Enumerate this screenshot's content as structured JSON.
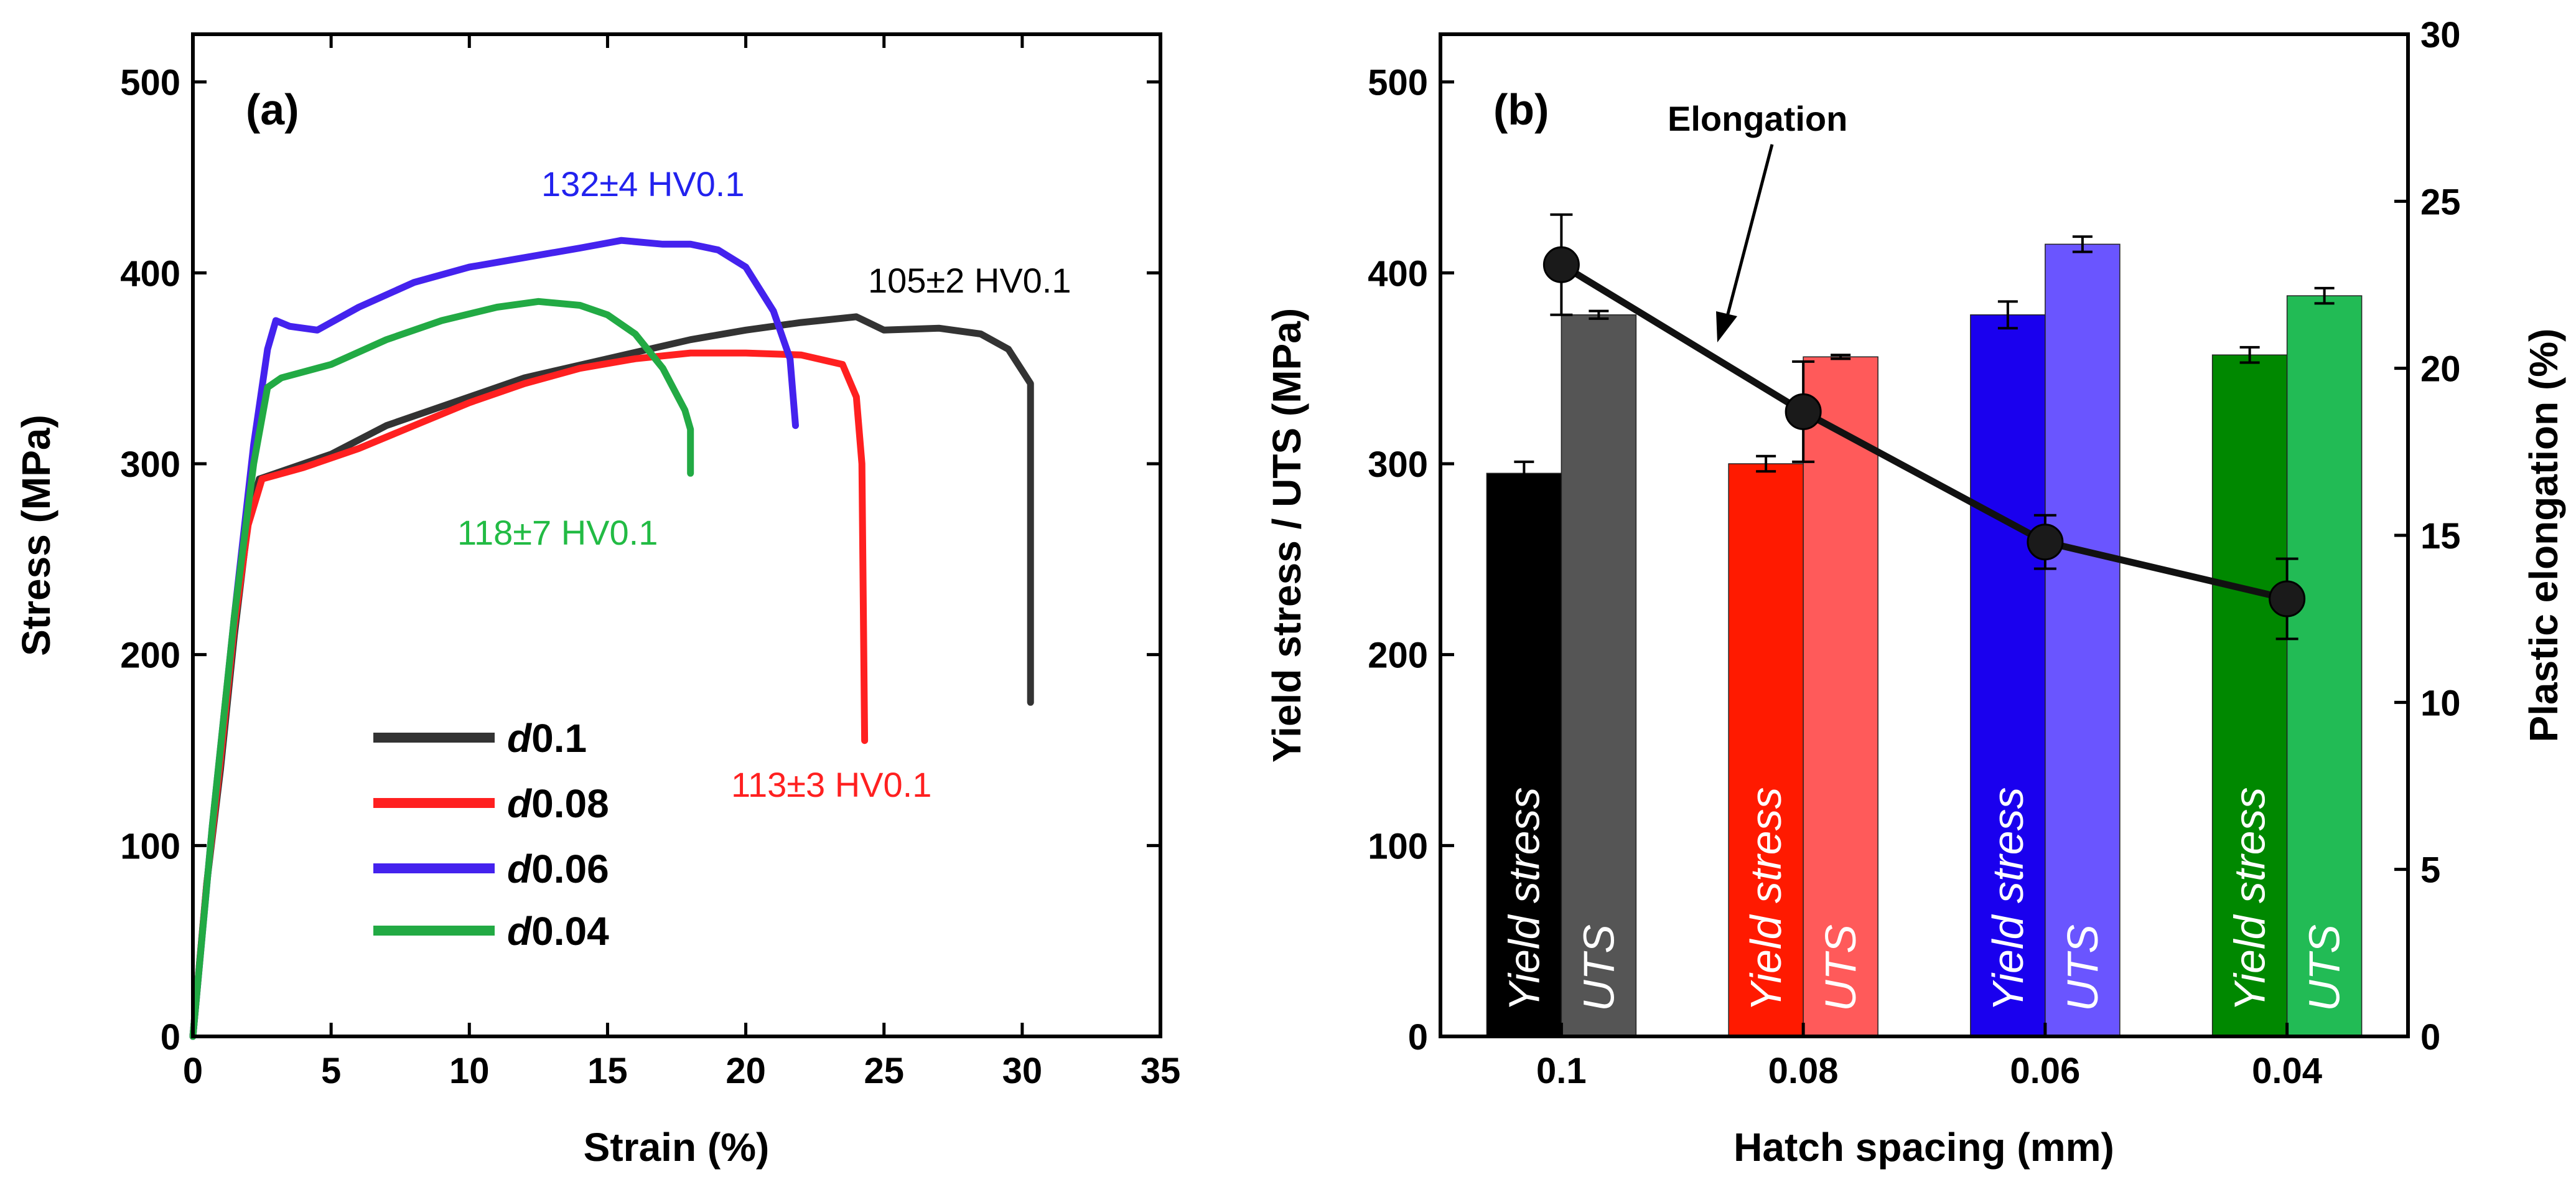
{
  "chart_data": [
    {
      "panel": "(a)",
      "type": "line",
      "title": "",
      "xlabel": "Strain (%)",
      "ylabel": "Stress (MPa)",
      "xlim": [
        0,
        35
      ],
      "ylim": [
        0,
        525
      ],
      "xticks": [
        0,
        5,
        10,
        15,
        20,
        25,
        30,
        35
      ],
      "yticks": [
        0,
        100,
        200,
        300,
        400,
        500
      ],
      "grid": false,
      "legend_position": "bottom-center",
      "series": [
        {
          "name": "d0.1",
          "legend_prefix": "d",
          "legend_suffix": "0.1",
          "color": "#333333",
          "points": [
            [
              0,
              0
            ],
            [
              0.5,
              80
            ],
            [
              1,
              140
            ],
            [
              1.5,
              210
            ],
            [
              2,
              270
            ],
            [
              2.4,
              292
            ],
            [
              3,
              295
            ],
            [
              5,
              305
            ],
            [
              7,
              320
            ],
            [
              10,
              335
            ],
            [
              12,
              345
            ],
            [
              15,
              355
            ],
            [
              18,
              365
            ],
            [
              20,
              370
            ],
            [
              22,
              374
            ],
            [
              24,
              377
            ],
            [
              25,
              370
            ],
            [
              27,
              371
            ],
            [
              28.5,
              368
            ],
            [
              29.5,
              360
            ],
            [
              30.3,
              342
            ],
            [
              30.3,
              175
            ]
          ],
          "hardness_label": "105±2 HV0.1",
          "annotation_color": "#000000"
        },
        {
          "name": "d0.08",
          "legend_prefix": "d",
          "legend_suffix": "0.08",
          "color": "#ff2020",
          "points": [
            [
              0,
              0
            ],
            [
              0.5,
              80
            ],
            [
              1,
              145
            ],
            [
              1.5,
              215
            ],
            [
              2,
              268
            ],
            [
              2.5,
              292
            ],
            [
              4,
              298
            ],
            [
              6,
              308
            ],
            [
              8,
              320
            ],
            [
              10,
              332
            ],
            [
              12,
              342
            ],
            [
              14,
              350
            ],
            [
              16,
              355
            ],
            [
              18,
              358
            ],
            [
              20,
              358
            ],
            [
              22,
              357
            ],
            [
              23.5,
              352
            ],
            [
              24,
              335
            ],
            [
              24.2,
              300
            ],
            [
              24.3,
              155
            ]
          ],
          "hardness_label": "113±3 HV0.1",
          "annotation_color": "#ff2020"
        },
        {
          "name": "d0.06",
          "legend_prefix": "d",
          "legend_suffix": "0.06",
          "color": "#4422ee",
          "points": [
            [
              0,
              0
            ],
            [
              0.7,
              110
            ],
            [
              1.5,
              220
            ],
            [
              2.2,
              310
            ],
            [
              2.7,
              360
            ],
            [
              3,
              375
            ],
            [
              3.5,
              372
            ],
            [
              4.5,
              370
            ],
            [
              6,
              382
            ],
            [
              8,
              395
            ],
            [
              10,
              403
            ],
            [
              12,
              408
            ],
            [
              14,
              413
            ],
            [
              15.5,
              417
            ],
            [
              17,
              415
            ],
            [
              18,
              415
            ],
            [
              19,
              412
            ],
            [
              20,
              403
            ],
            [
              21,
              380
            ],
            [
              21.6,
              355
            ],
            [
              21.8,
              320
            ]
          ],
          "hardness_label": "132±4 HV0.1",
          "annotation_color": "#2222ee"
        },
        {
          "name": "d0.04",
          "legend_prefix": "d",
          "legend_suffix": "0.04",
          "color": "#22aa44",
          "points": [
            [
              0,
              0
            ],
            [
              0.7,
              110
            ],
            [
              1.5,
              220
            ],
            [
              2.2,
              300
            ],
            [
              2.7,
              340
            ],
            [
              3.2,
              345
            ],
            [
              5,
              352
            ],
            [
              7,
              365
            ],
            [
              9,
              375
            ],
            [
              11,
              382
            ],
            [
              12.5,
              385
            ],
            [
              14,
              383
            ],
            [
              15,
              378
            ],
            [
              16,
              368
            ],
            [
              17,
              350
            ],
            [
              17.8,
              328
            ],
            [
              18,
              318
            ],
            [
              18,
              295
            ]
          ],
          "hardness_label": "118±7 HV0.1",
          "annotation_color": "#22bb44"
        }
      ]
    },
    {
      "panel": "(b)",
      "type": "bar",
      "title": "",
      "xlabel": "Hatch spacing (mm)",
      "ylabel": "Yield stress / UTS (MPa)",
      "ylabel_right": "Plastic elongation (%)",
      "categories": [
        "0.1",
        "0.08",
        "0.06",
        "0.04"
      ],
      "ylim": [
        0,
        525
      ],
      "yticks": [
        0,
        100,
        200,
        300,
        400,
        500
      ],
      "ylim_right": [
        0,
        30
      ],
      "yticks_right": [
        0,
        5,
        10,
        15,
        20,
        25,
        30
      ],
      "grid": false,
      "bar_text": [
        "Yield stress",
        "UTS"
      ],
      "series": [
        {
          "name": "Yield stress",
          "values": [
            295,
            300,
            378,
            357
          ],
          "errors": [
            6,
            4,
            7,
            4
          ],
          "colors": [
            "#000000",
            "#ff1a00",
            "#1a00ee",
            "#008800"
          ]
        },
        {
          "name": "UTS",
          "values": [
            378,
            356,
            415,
            388
          ],
          "errors": [
            2,
            1,
            4,
            4
          ],
          "colors": [
            "#555555",
            "#ff5a5a",
            "#6a55ff",
            "#22bb55"
          ]
        }
      ],
      "elongation": {
        "name": "Elongation",
        "values": [
          23.1,
          18.7,
          14.8,
          13.1
        ],
        "errors": [
          1.5,
          1.5,
          0.8,
          1.2
        ],
        "color": "#111111"
      }
    }
  ]
}
